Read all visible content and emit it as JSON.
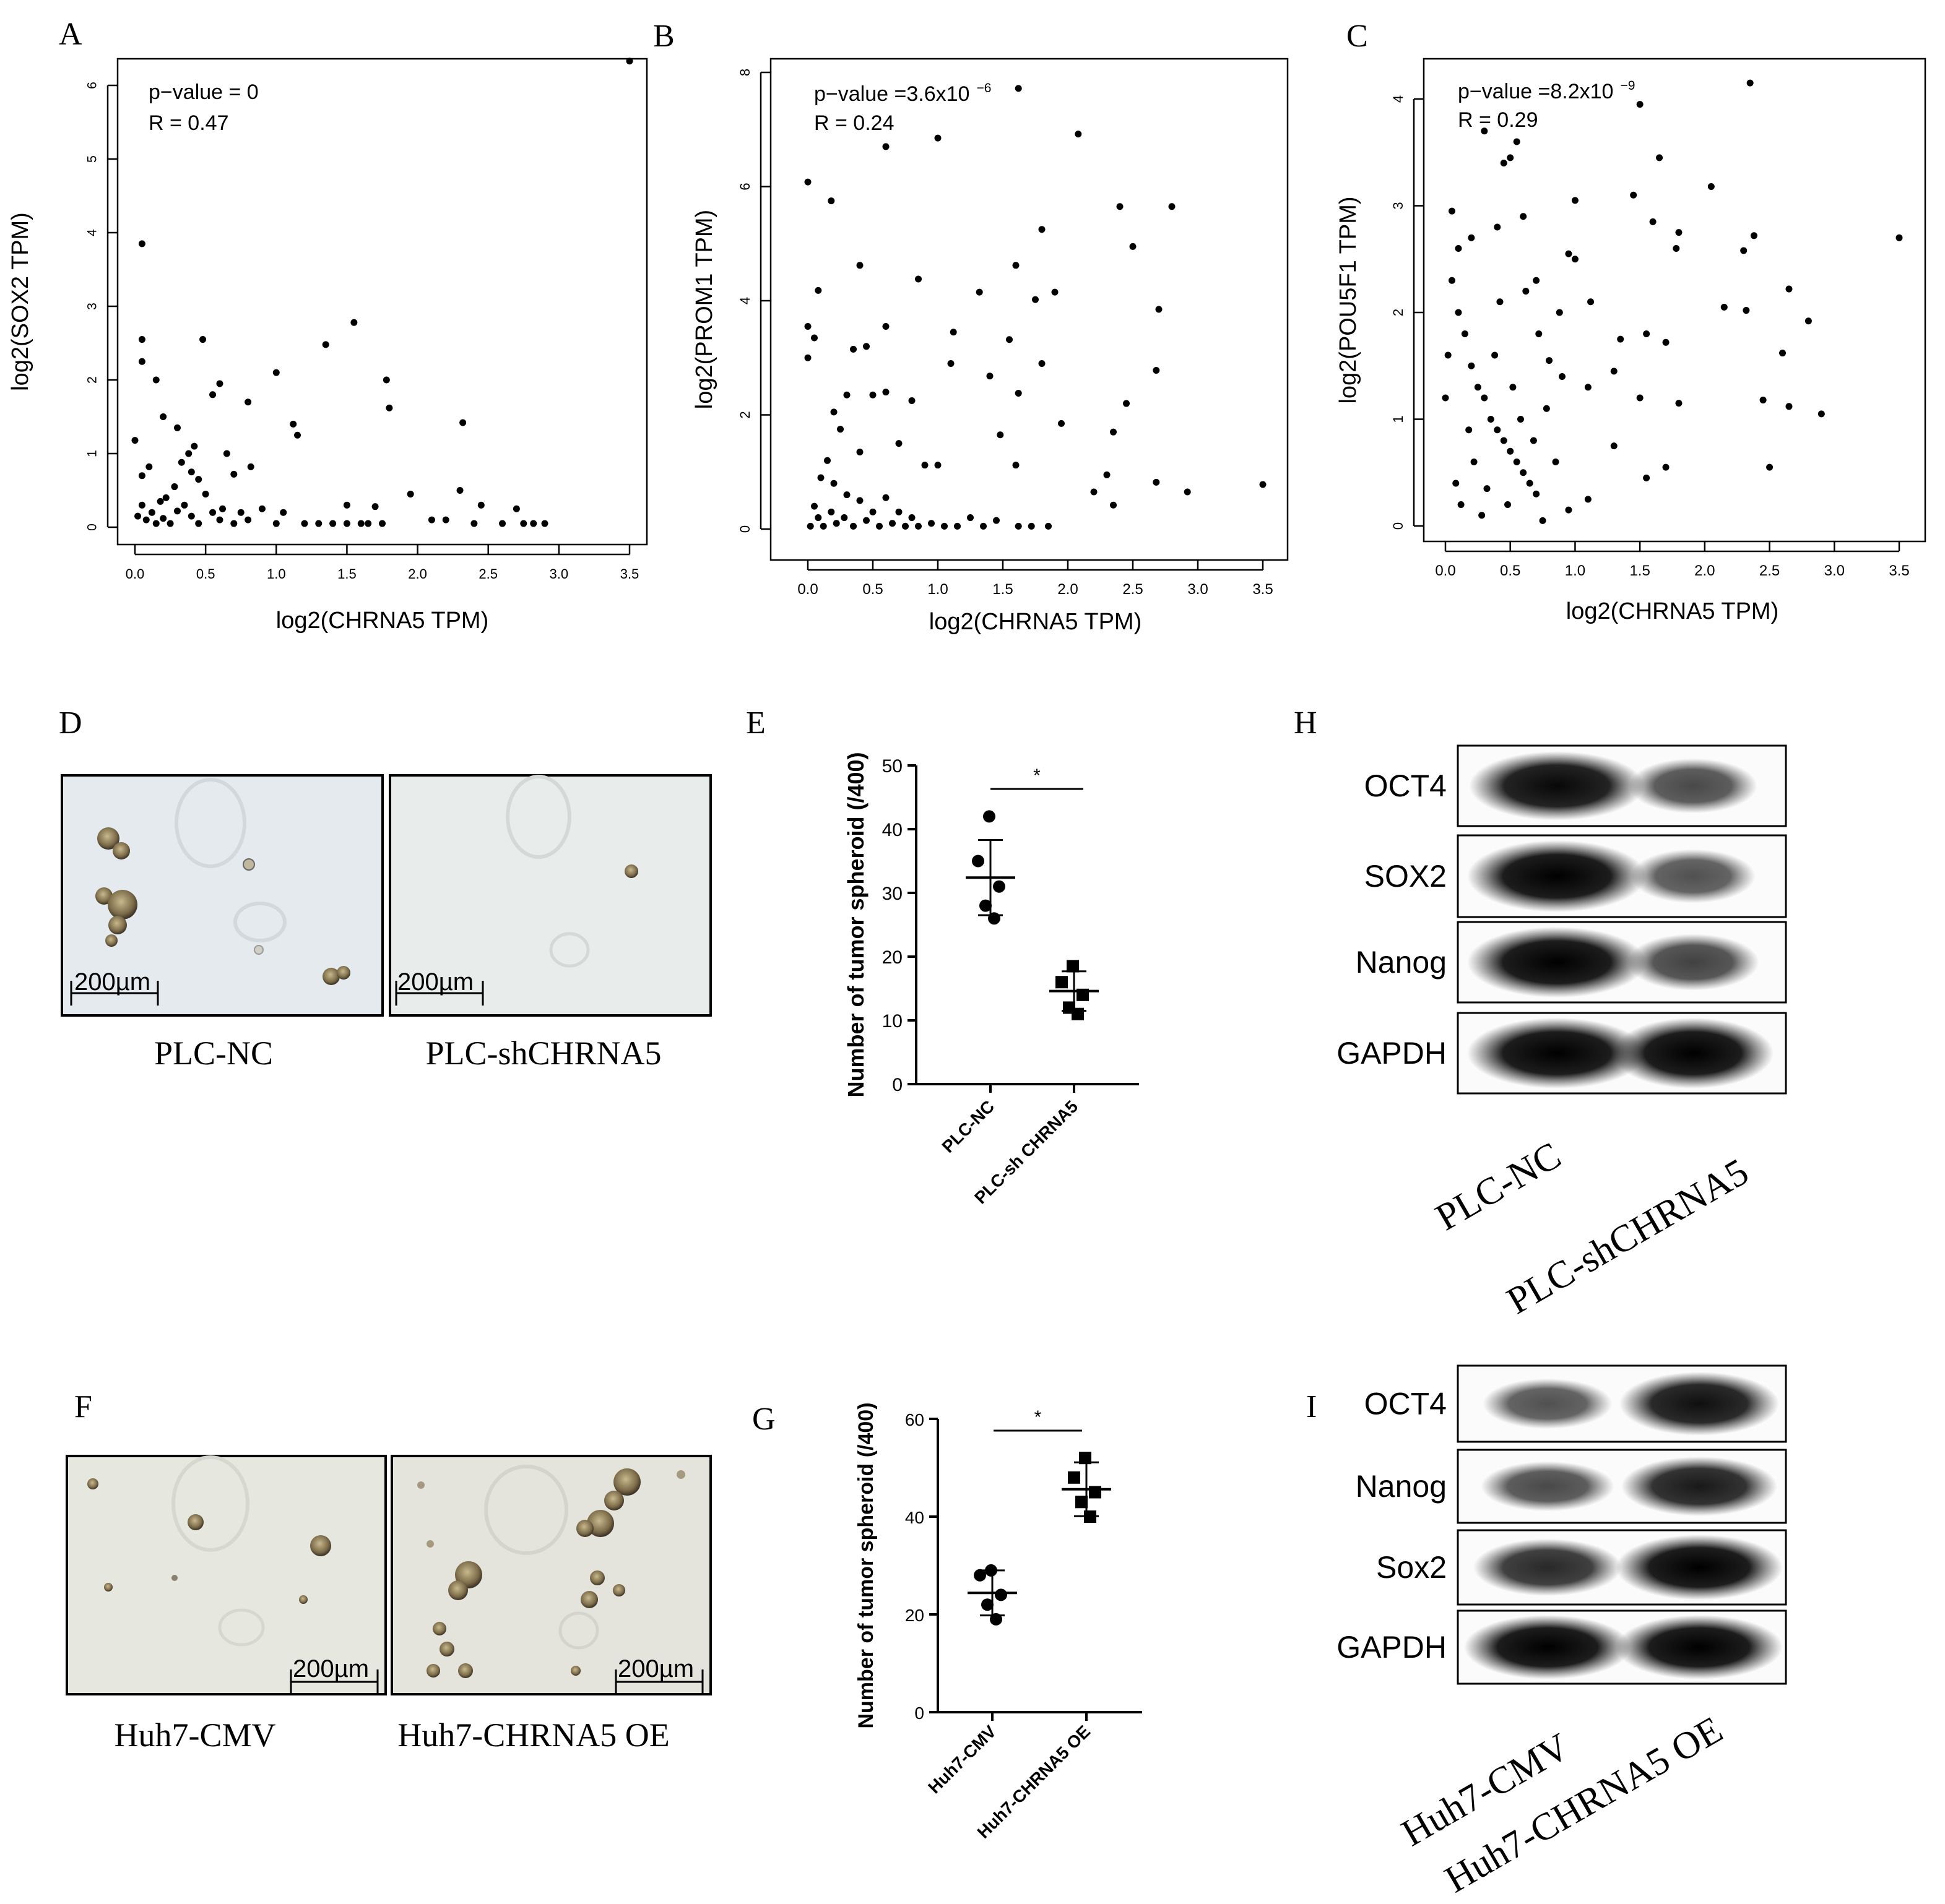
{
  "panel_letters": {
    "A": "A",
    "B": "B",
    "C": "C",
    "D": "D",
    "E": "E",
    "F": "F",
    "G": "G",
    "H": "H",
    "I": "I"
  },
  "scale_bar_label": "200µm",
  "colors": {
    "ink": "#000000",
    "micrograph_bg": "#e9ecec",
    "spheroid": "#8a7a5a",
    "band": "#141414"
  },
  "chart_data": [
    {
      "id": "A",
      "type": "scatter",
      "title": "",
      "xlabel": "log2(CHRNA5 TPM)",
      "ylabel": "log2(SOX2 TPM)",
      "annotations": [
        "p−value = 0",
        "R = 0.47"
      ],
      "xlim": [
        0,
        3.5
      ],
      "ylim": [
        0,
        6
      ],
      "xticks": [
        "0.0",
        "0.5",
        "1.0",
        "1.5",
        "2.0",
        "2.5",
        "3.0",
        "3.5"
      ],
      "yticks": [
        "0",
        "1",
        "2",
        "3",
        "4",
        "5",
        "6"
      ],
      "points": [
        [
          3.5,
          6.33
        ],
        [
          0.05,
          3.85
        ],
        [
          0.05,
          2.55
        ],
        [
          0.48,
          2.55
        ],
        [
          1.55,
          2.78
        ],
        [
          1.35,
          2.48
        ],
        [
          1.0,
          2.1
        ],
        [
          1.78,
          2.0
        ],
        [
          1.8,
          1.62
        ],
        [
          0.05,
          2.25
        ],
        [
          0.15,
          2.0
        ],
        [
          0.6,
          1.95
        ],
        [
          0.55,
          1.8
        ],
        [
          0.8,
          1.7
        ],
        [
          1.12,
          1.4
        ],
        [
          1.15,
          1.25
        ],
        [
          2.32,
          1.42
        ],
        [
          0.0,
          1.18
        ],
        [
          0.2,
          1.5
        ],
        [
          0.3,
          1.35
        ],
        [
          0.42,
          1.1
        ],
        [
          0.38,
          1.0
        ],
        [
          0.33,
          0.88
        ],
        [
          0.4,
          0.75
        ],
        [
          0.45,
          0.65
        ],
        [
          0.65,
          1.0
        ],
        [
          0.7,
          0.72
        ],
        [
          0.82,
          0.82
        ],
        [
          0.1,
          0.82
        ],
        [
          0.28,
          0.55
        ],
        [
          0.5,
          0.45
        ],
        [
          0.18,
          0.35
        ],
        [
          1.95,
          0.45
        ],
        [
          2.3,
          0.5
        ],
        [
          2.45,
          0.3
        ],
        [
          1.5,
          0.3
        ],
        [
          1.7,
          0.28
        ],
        [
          2.7,
          0.25
        ],
        [
          0.05,
          0.7
        ],
        [
          0.22,
          0.4
        ],
        [
          0.3,
          0.22
        ],
        [
          0.35,
          0.3
        ],
        [
          0.55,
          0.2
        ],
        [
          0.62,
          0.25
        ],
        [
          0.75,
          0.2
        ],
        [
          0.9,
          0.25
        ],
        [
          1.05,
          0.2
        ],
        [
          1.4,
          0.05
        ],
        [
          1.6,
          0.05
        ],
        [
          1.75,
          0.05
        ],
        [
          2.1,
          0.1
        ],
        [
          2.2,
          0.1
        ],
        [
          2.4,
          0.05
        ],
        [
          2.6,
          0.05
        ],
        [
          2.75,
          0.05
        ],
        [
          2.82,
          0.05
        ],
        [
          2.9,
          0.05
        ],
        [
          0.02,
          0.15
        ],
        [
          0.05,
          0.3
        ],
        [
          0.08,
          0.1
        ],
        [
          0.12,
          0.2
        ],
        [
          0.15,
          0.05
        ],
        [
          0.2,
          0.12
        ],
        [
          0.25,
          0.05
        ],
        [
          0.4,
          0.15
        ],
        [
          0.45,
          0.05
        ],
        [
          0.6,
          0.1
        ],
        [
          0.7,
          0.05
        ],
        [
          0.8,
          0.1
        ],
        [
          1.0,
          0.05
        ],
        [
          1.2,
          0.05
        ],
        [
          1.3,
          0.05
        ],
        [
          1.5,
          0.05
        ],
        [
          1.65,
          0.05
        ]
      ]
    },
    {
      "id": "B",
      "type": "scatter",
      "title": "",
      "xlabel": "log2(CHRNA5 TPM)",
      "ylabel": "log2(PROM1 TPM)",
      "annotations": [
        "p−value =3.6x10",
        "−6",
        "R = 0.24"
      ],
      "xlim": [
        0,
        3.5
      ],
      "ylim": [
        0,
        8
      ],
      "xticks": [
        "0.0",
        "0.5",
        "1.0",
        "1.5",
        "2.0",
        "2.5",
        "3.0",
        "3.5"
      ],
      "yticks": [
        "0",
        "2",
        "4",
        "6",
        "8"
      ],
      "points": [
        [
          1.62,
          7.72
        ],
        [
          1.0,
          6.85
        ],
        [
          0.6,
          6.7
        ],
        [
          2.08,
          6.92
        ],
        [
          0.0,
          6.08
        ],
        [
          0.18,
          5.75
        ],
        [
          2.4,
          5.65
        ],
        [
          2.8,
          5.65
        ],
        [
          1.8,
          5.25
        ],
        [
          2.5,
          4.95
        ],
        [
          0.4,
          4.62
        ],
        [
          1.6,
          4.62
        ],
        [
          0.85,
          4.38
        ],
        [
          1.9,
          4.15
        ],
        [
          1.75,
          4.02
        ],
        [
          1.32,
          4.15
        ],
        [
          0.08,
          4.18
        ],
        [
          2.7,
          3.85
        ],
        [
          0.0,
          3.55
        ],
        [
          0.05,
          3.35
        ],
        [
          1.12,
          3.45
        ],
        [
          1.55,
          3.32
        ],
        [
          0.35,
          3.15
        ],
        [
          0.45,
          3.2
        ],
        [
          0.6,
          3.55
        ],
        [
          0.0,
          3.0
        ],
        [
          1.1,
          2.9
        ],
        [
          1.8,
          2.9
        ],
        [
          1.4,
          2.68
        ],
        [
          0.3,
          2.35
        ],
        [
          0.5,
          2.35
        ],
        [
          0.6,
          2.4
        ],
        [
          2.68,
          2.78
        ],
        [
          1.62,
          2.38
        ],
        [
          0.8,
          2.25
        ],
        [
          0.2,
          2.05
        ],
        [
          2.45,
          2.2
        ],
        [
          1.95,
          1.85
        ],
        [
          2.35,
          1.7
        ],
        [
          0.25,
          1.75
        ],
        [
          0.7,
          1.5
        ],
        [
          0.4,
          1.35
        ],
        [
          1.48,
          1.65
        ],
        [
          0.9,
          1.12
        ],
        [
          1.0,
          1.12
        ],
        [
          1.6,
          1.12
        ],
        [
          2.3,
          0.95
        ],
        [
          2.2,
          0.65
        ],
        [
          2.68,
          0.82
        ],
        [
          2.92,
          0.65
        ],
        [
          3.5,
          0.78
        ],
        [
          2.35,
          0.42
        ],
        [
          0.15,
          1.2
        ],
        [
          0.1,
          0.9
        ],
        [
          0.2,
          0.8
        ],
        [
          0.3,
          0.6
        ],
        [
          0.4,
          0.5
        ],
        [
          0.5,
          0.3
        ],
        [
          0.6,
          0.55
        ],
        [
          0.7,
          0.3
        ],
        [
          0.8,
          0.2
        ],
        [
          1.25,
          0.2
        ],
        [
          1.45,
          0.15
        ],
        [
          1.62,
          0.05
        ],
        [
          1.72,
          0.05
        ],
        [
          1.85,
          0.05
        ],
        [
          0.02,
          0.05
        ],
        [
          0.05,
          0.4
        ],
        [
          0.08,
          0.2
        ],
        [
          0.12,
          0.05
        ],
        [
          0.18,
          0.3
        ],
        [
          0.22,
          0.1
        ],
        [
          0.28,
          0.2
        ],
        [
          0.35,
          0.05
        ],
        [
          0.45,
          0.15
        ],
        [
          0.55,
          0.05
        ],
        [
          0.65,
          0.1
        ],
        [
          0.75,
          0.05
        ],
        [
          0.85,
          0.05
        ],
        [
          0.95,
          0.1
        ],
        [
          1.05,
          0.05
        ],
        [
          1.15,
          0.05
        ],
        [
          1.35,
          0.05
        ]
      ]
    },
    {
      "id": "C",
      "type": "scatter",
      "title": "",
      "xlabel": "log2(CHRNA5 TPM)",
      "ylabel": "log2(POU5F1 TPM)",
      "annotations": [
        "p−value =8.2x10",
        "−9",
        "R = 0.29"
      ],
      "xlim": [
        0,
        3.5
      ],
      "ylim": [
        0,
        4
      ],
      "xticks": [
        "0.0",
        "0.5",
        "1.0",
        "1.5",
        "2.0",
        "2.5",
        "3.0",
        "3.5"
      ],
      "yticks": [
        "0",
        "1",
        "2",
        "3",
        "4"
      ],
      "points": [
        [
          2.35,
          4.15
        ],
        [
          1.5,
          3.95
        ],
        [
          0.55,
          3.6
        ],
        [
          0.5,
          3.45
        ],
        [
          0.45,
          3.4
        ],
        [
          0.3,
          3.7
        ],
        [
          1.65,
          3.45
        ],
        [
          2.05,
          3.18
        ],
        [
          1.0,
          3.05
        ],
        [
          1.45,
          3.1
        ],
        [
          1.6,
          2.85
        ],
        [
          1.8,
          2.75
        ],
        [
          2.38,
          2.72
        ],
        [
          2.3,
          2.58
        ],
        [
          3.5,
          2.7
        ],
        [
          1.78,
          2.6
        ],
        [
          1.0,
          2.5
        ],
        [
          0.05,
          2.95
        ],
        [
          0.1,
          2.6
        ],
        [
          0.2,
          2.7
        ],
        [
          0.4,
          2.8
        ],
        [
          0.6,
          2.9
        ],
        [
          0.95,
          2.55
        ],
        [
          0.7,
          2.3
        ],
        [
          1.12,
          2.1
        ],
        [
          2.15,
          2.05
        ],
        [
          2.32,
          2.02
        ],
        [
          2.65,
          2.22
        ],
        [
          2.8,
          1.92
        ],
        [
          1.35,
          1.75
        ],
        [
          1.55,
          1.8
        ],
        [
          1.7,
          1.72
        ],
        [
          2.6,
          1.62
        ],
        [
          0.8,
          1.55
        ],
        [
          0.9,
          1.4
        ],
        [
          1.1,
          1.3
        ],
        [
          1.3,
          1.45
        ],
        [
          2.45,
          1.18
        ],
        [
          2.65,
          1.12
        ],
        [
          2.9,
          1.05
        ],
        [
          1.8,
          1.15
        ],
        [
          1.5,
          1.2
        ],
        [
          1.7,
          0.55
        ],
        [
          1.55,
          0.45
        ],
        [
          1.3,
          0.75
        ],
        [
          2.5,
          0.55
        ],
        [
          1.1,
          0.25
        ],
        [
          0.95,
          0.15
        ],
        [
          0.75,
          0.05
        ],
        [
          0.05,
          2.3
        ],
        [
          0.1,
          2.0
        ],
        [
          0.15,
          1.8
        ],
        [
          0.2,
          1.5
        ],
        [
          0.25,
          1.3
        ],
        [
          0.3,
          1.2
        ],
        [
          0.35,
          1.0
        ],
        [
          0.4,
          0.9
        ],
        [
          0.45,
          0.8
        ],
        [
          0.5,
          0.7
        ],
        [
          0.55,
          0.6
        ],
        [
          0.6,
          0.5
        ],
        [
          0.65,
          0.4
        ],
        [
          0.7,
          0.3
        ],
        [
          0.0,
          1.2
        ],
        [
          0.02,
          1.6
        ],
        [
          0.08,
          0.4
        ],
        [
          0.12,
          0.2
        ],
        [
          0.18,
          0.9
        ],
        [
          0.22,
          0.6
        ],
        [
          0.28,
          0.1
        ],
        [
          0.32,
          0.35
        ],
        [
          0.38,
          1.6
        ],
        [
          0.42,
          2.1
        ],
        [
          0.48,
          0.2
        ],
        [
          0.52,
          1.3
        ],
        [
          0.58,
          1.0
        ],
        [
          0.62,
          2.2
        ],
        [
          0.68,
          0.8
        ],
        [
          0.72,
          1.8
        ],
        [
          0.78,
          1.1
        ],
        [
          0.85,
          0.6
        ],
        [
          0.88,
          2.0
        ]
      ]
    },
    {
      "id": "E",
      "type": "scatter",
      "title": "",
      "xlabel": "",
      "ylabel": "Number of tumor spheroid (/400)",
      "categories": [
        "PLC-NC",
        "PLC-sh CHRNA5"
      ],
      "ylim": [
        0,
        50
      ],
      "yticks": [
        "0",
        "10",
        "20",
        "30",
        "40",
        "50"
      ],
      "significance": "*",
      "series": [
        {
          "values": [
            42,
            35,
            31,
            28,
            26
          ],
          "mean": 32.4,
          "sd": 5.9
        },
        {
          "values": [
            18.5,
            16,
            14,
            12,
            11
          ],
          "mean": 14.6,
          "sd": 3.1
        }
      ]
    },
    {
      "id": "G",
      "type": "scatter",
      "title": "",
      "xlabel": "",
      "ylabel": "Number of tumor spheroid (/400)",
      "categories": [
        "Huh7-CMV",
        "Huh7-CHRNA5 OE"
      ],
      "ylim": [
        0,
        60
      ],
      "yticks": [
        "0",
        "20",
        "40",
        "60"
      ],
      "significance": "*",
      "series": [
        {
          "values": [
            29,
            28,
            24,
            22,
            19
          ],
          "mean": 24.4,
          "sd": 4.6
        },
        {
          "values": [
            52,
            48,
            45,
            43,
            40
          ],
          "mean": 45.6,
          "sd": 5.5
        }
      ]
    }
  ],
  "micrographs_D": {
    "left_label": "PLC-NC",
    "right_label": "PLC-shCHRNA5"
  },
  "micrographs_F": {
    "left_label": "Huh7-CMV",
    "right_label": "Huh7-CHRNA5 OE"
  },
  "blot_H": {
    "rows": [
      {
        "label": "OCT4",
        "intensities": [
          0.95,
          0.55
        ]
      },
      {
        "label": "SOX2",
        "intensities": [
          1.0,
          0.5
        ]
      },
      {
        "label": "Nanog",
        "intensities": [
          1.0,
          0.6
        ]
      },
      {
        "label": "GAPDH",
        "intensities": [
          1.0,
          1.0
        ]
      }
    ],
    "lanes": [
      "PLC-NC",
      "PLC-shCHRNA5"
    ]
  },
  "blot_I": {
    "rows": [
      {
        "label": "OCT4",
        "intensities": [
          0.5,
          0.9
        ]
      },
      {
        "label": "Nanog",
        "intensities": [
          0.55,
          0.85
        ]
      },
      {
        "label": "Sox2",
        "intensities": [
          0.75,
          1.0
        ]
      },
      {
        "label": "GAPDH",
        "intensities": [
          1.0,
          1.0
        ]
      }
    ],
    "lanes": [
      "Huh7-CMV",
      "Huh7-CHRNA5 OE"
    ]
  }
}
